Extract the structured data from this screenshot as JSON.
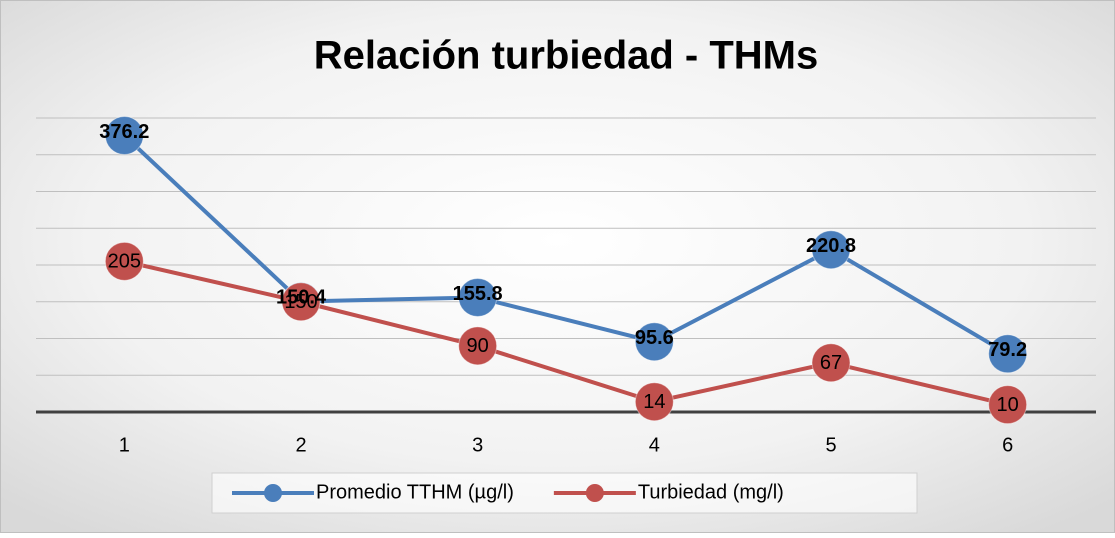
{
  "chart_data": {
    "type": "line",
    "title": "Relación turbiedad - THMs",
    "categories": [
      "1",
      "2",
      "3",
      "4",
      "5",
      "6"
    ],
    "series": [
      {
        "name": "Promedio TTHM (µg/l)",
        "color": "#4a7ebb",
        "values": [
          376.2,
          150.4,
          155.8,
          95.6,
          220.8,
          79.2
        ]
      },
      {
        "name": "Turbiedad (mg/l)",
        "color": "#c0504d",
        "values": [
          205,
          150,
          90,
          14,
          67,
          10
        ]
      }
    ],
    "ylim": [
      0,
      400
    ],
    "yticks": [
      0,
      50,
      100,
      150,
      200,
      250,
      300,
      350,
      400
    ],
    "grid": true,
    "legend": "bottom"
  }
}
